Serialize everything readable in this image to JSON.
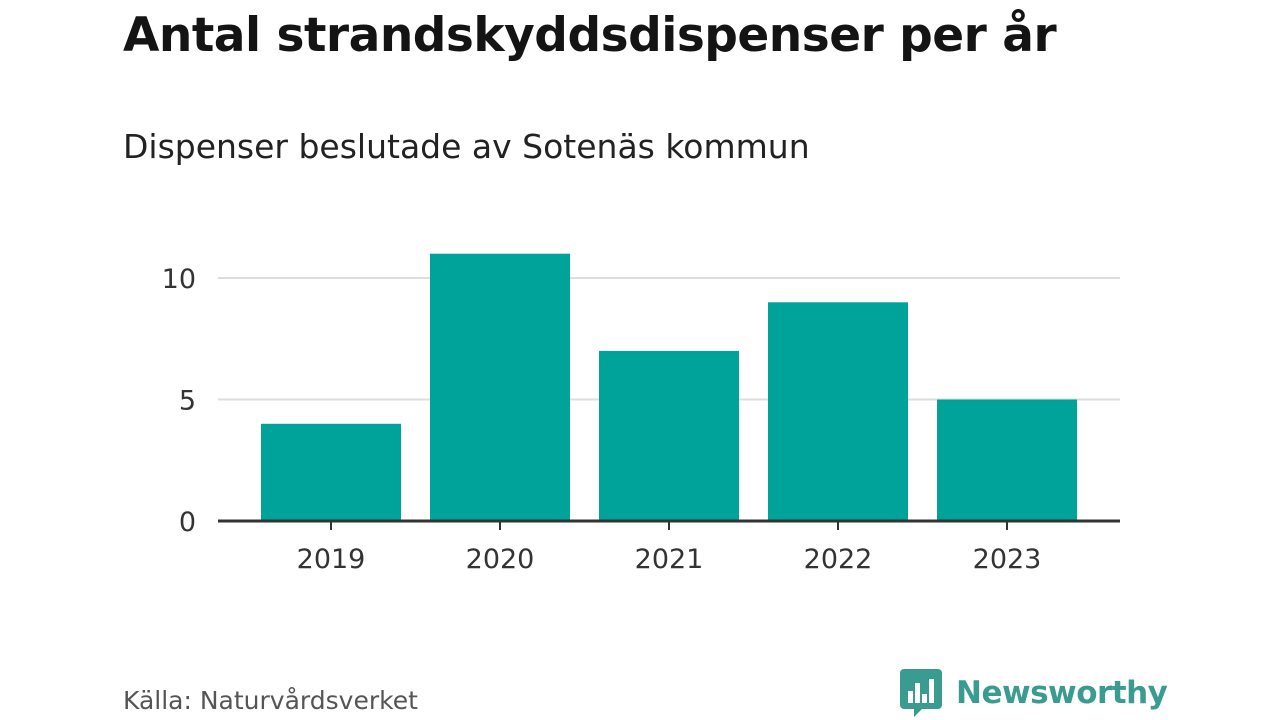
{
  "header": {
    "title": "Antal strandskyddsdispenser per år",
    "subtitle": "Dispenser beslutade av Sotenäs kommun"
  },
  "chart_data": {
    "type": "bar",
    "title": "Antal strandskyddsdispenser per år",
    "subtitle": "Dispenser beslutade av Sotenäs kommun",
    "categories": [
      "2019",
      "2020",
      "2021",
      "2022",
      "2023"
    ],
    "values": [
      4,
      11,
      7,
      9,
      5
    ],
    "xlabel": "",
    "ylabel": "",
    "ylim": [
      0,
      12
    ],
    "yticks": [
      0,
      5,
      10
    ],
    "grid": true,
    "bar_color": "#00a39a"
  },
  "footer": {
    "source": "Källa: Naturvårdsverket",
    "brand": "Newsworthy",
    "brand_icon": "bar-chart-speech-bubble-icon"
  },
  "colors": {
    "bar": "#00a39a",
    "brand": "#3a9b90",
    "grid": "#dddddd",
    "axis": "#333333"
  }
}
